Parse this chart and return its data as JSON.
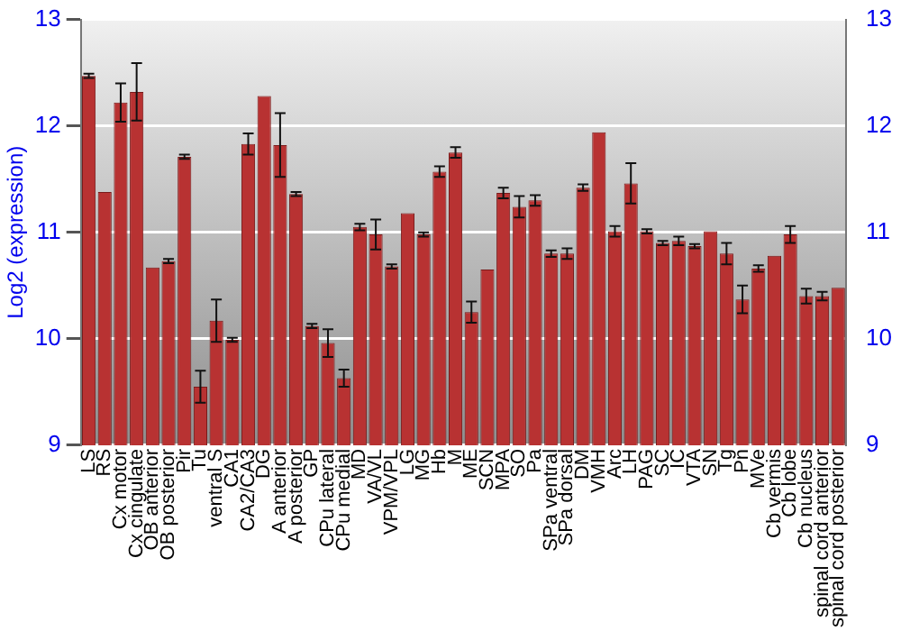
{
  "chart_data": {
    "type": "bar",
    "ylabel": "Log2 (expression)",
    "categories": [
      "LS",
      "RS",
      "Cx motor",
      "Cx cingulate",
      "OB anterior",
      "OB posterior",
      "Pir",
      "Tu",
      "ventral S",
      "CA1",
      "CA2/CA3",
      "DG",
      "A anterior",
      "A posterior",
      "GP",
      "CPu lateral",
      "CPu medial",
      "MD",
      "VA/VL",
      "VPM/VPL",
      "LG",
      "MG",
      "Hb",
      "M",
      "ME",
      "SCN",
      "MPA",
      "SO",
      "Pa",
      "SPa ventral",
      "SPa dorsal",
      "DM",
      "VMH",
      "Arc",
      "LH",
      "PAG",
      "SC",
      "IC",
      "VTA",
      "SN",
      "Tg",
      "Pn",
      "MVe",
      "Cb vermis",
      "Cb lobe",
      "Cb nucleus",
      "spinal cord anterior",
      "spinal cord posterior"
    ],
    "values": [
      12.47,
      11.38,
      12.22,
      12.32,
      10.67,
      10.73,
      11.71,
      9.55,
      10.17,
      9.99,
      11.83,
      12.28,
      11.82,
      11.36,
      10.12,
      9.96,
      9.63,
      11.05,
      10.98,
      10.68,
      11.18,
      10.98,
      11.57,
      11.75,
      10.25,
      10.65,
      11.37,
      11.24,
      11.3,
      10.8,
      10.8,
      11.42,
      11.94,
      11.01,
      11.46,
      11.01,
      10.9,
      10.92,
      10.87,
      11.01,
      10.8,
      10.37,
      10.66,
      10.78,
      10.98,
      10.4,
      10.4,
      10.48
    ],
    "errors": [
      0.02,
      null,
      0.18,
      0.27,
      null,
      0.02,
      0.02,
      0.15,
      0.2,
      0.02,
      0.1,
      null,
      0.3,
      0.02,
      0.02,
      0.13,
      0.08,
      0.03,
      0.14,
      0.02,
      null,
      0.02,
      0.05,
      0.05,
      0.1,
      null,
      0.05,
      0.1,
      0.05,
      0.03,
      0.05,
      0.03,
      null,
      0.05,
      0.19,
      0.02,
      0.02,
      0.04,
      0.02,
      null,
      0.1,
      0.13,
      0.03,
      null,
      0.08,
      0.07,
      0.04,
      null
    ],
    "color": "#b83232",
    "ylim": [
      9,
      13
    ],
    "yticks": [
      9,
      10,
      11,
      12,
      13
    ],
    "y2lim": [
      9,
      13
    ],
    "y2ticks": [
      9,
      10,
      11,
      12,
      13
    ],
    "grid": "y",
    "legend": false
  }
}
